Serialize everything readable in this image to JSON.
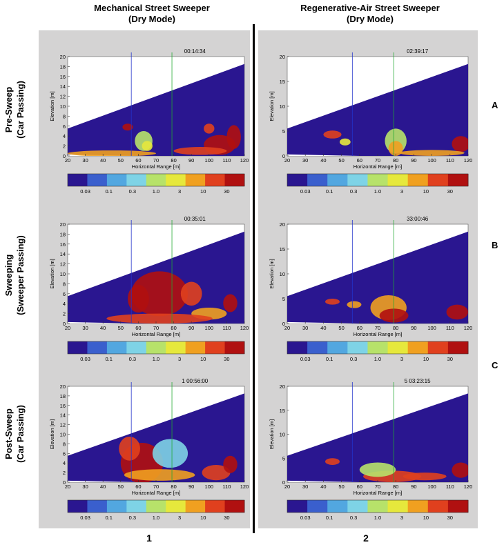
{
  "columns": [
    {
      "line1": "Mechanical Street Sweeper",
      "line2": "(Dry Mode)",
      "number": "1"
    },
    {
      "line1": "Regenerative-Air Street Sweeper",
      "line2": "(Dry Mode)",
      "number": "2"
    }
  ],
  "rows": [
    {
      "line1": "Pre-Sweep",
      "line2": "(Car Passing)",
      "letter": "A"
    },
    {
      "line1": "Sweeping",
      "line2": "(Sweeper Passing)",
      "letter": "B"
    },
    {
      "line1": "Post-Sweep",
      "line2": "(Car Passing)",
      "letter": "C"
    }
  ],
  "colors": {
    "background_navy": "#2a1690",
    "panel_gray": "#d4d3d3",
    "colorbar": [
      "#2a1690",
      "#3a5fcd",
      "#52a7e0",
      "#7ed3e6",
      "#b7e26a",
      "#e6e83c",
      "#f0a020",
      "#e0401e",
      "#b01010"
    ]
  },
  "chart_data": [
    {
      "type": "heatmap",
      "panel": "1A",
      "timestamp": "00:14:34",
      "xlabel": "Horizontal Range [m]",
      "ylabel": "Elevation [m]",
      "xlim": [
        20,
        120
      ],
      "ylim": [
        0,
        20
      ],
      "xticks": [
        "20",
        "30",
        "40",
        "50",
        "60",
        "70",
        "80",
        "90",
        "100",
        "110",
        "120"
      ],
      "yticks": [
        "0",
        "2",
        "4",
        "6",
        "8",
        "10",
        "12",
        "14",
        "16",
        "18",
        "20"
      ],
      "colorbar_ticks": [
        "0.03",
        "0.1",
        "0.3",
        "1.0",
        "3",
        "10",
        "30"
      ]
    },
    {
      "type": "heatmap",
      "panel": "2A",
      "timestamp": "02:39:17",
      "xlabel": "Horizontal Range [m]",
      "ylabel": "Elevation [m]",
      "xlim": [
        20,
        120
      ],
      "ylim": [
        0,
        20
      ],
      "xticks": [
        "20",
        "30",
        "40",
        "50",
        "60",
        "70",
        "80",
        "90",
        "100",
        "110",
        "120"
      ],
      "yticks": [
        "0",
        "5",
        "10",
        "15",
        "20"
      ],
      "colorbar_ticks": [
        "0.03",
        "0.1",
        "0.3",
        "1.0",
        "3",
        "10",
        "30"
      ]
    },
    {
      "type": "heatmap",
      "panel": "1B",
      "timestamp": "00:35:01",
      "xlabel": "Horizontal Range [m]",
      "ylabel": "Elevation [m]",
      "xlim": [
        20,
        120
      ],
      "ylim": [
        0,
        20
      ],
      "xticks": [
        "20",
        "30",
        "40",
        "50",
        "60",
        "70",
        "80",
        "90",
        "100",
        "110",
        "120"
      ],
      "yticks": [
        "0",
        "2",
        "4",
        "6",
        "8",
        "10",
        "12",
        "14",
        "16",
        "18",
        "20"
      ],
      "colorbar_ticks": [
        "0.03",
        "0.1",
        "0.3",
        "1.0",
        "3",
        "10",
        "30"
      ]
    },
    {
      "type": "heatmap",
      "panel": "2B",
      "timestamp": "33:00:46",
      "xlabel": "Horizontal Range [m]",
      "ylabel": "Elevation [m]",
      "xlim": [
        20,
        120
      ],
      "ylim": [
        0,
        20
      ],
      "xticks": [
        "20",
        "30",
        "40",
        "50",
        "60",
        "70",
        "80",
        "90",
        "100",
        "110",
        "120"
      ],
      "yticks": [
        "0",
        "5",
        "10",
        "15",
        "20"
      ],
      "colorbar_ticks": [
        "0.03",
        "0.1",
        "0.3",
        "1.0",
        "3",
        "10",
        "30"
      ]
    },
    {
      "type": "heatmap",
      "panel": "1C",
      "timestamp": "1 00:56:00",
      "xlabel": "Horizontal Range [m]",
      "ylabel": "Elevation [m]",
      "xlim": [
        20,
        120
      ],
      "ylim": [
        0,
        20
      ],
      "xticks": [
        "20",
        "30",
        "40",
        "50",
        "60",
        "70",
        "80",
        "90",
        "100",
        "110",
        "120"
      ],
      "yticks": [
        "0",
        "2",
        "4",
        "6",
        "8",
        "10",
        "12",
        "14",
        "16",
        "18",
        "20"
      ],
      "colorbar_ticks": [
        "0.03",
        "0.1",
        "0.3",
        "1.0",
        "3",
        "10",
        "30"
      ]
    },
    {
      "type": "heatmap",
      "panel": "2C",
      "timestamp": "5 03:23:15",
      "xlabel": "Horizontal Range [m]",
      "ylabel": "Elevation [m]",
      "xlim": [
        20,
        120
      ],
      "ylim": [
        0,
        20
      ],
      "xticks": [
        "20",
        "30",
        "40",
        "50",
        "60",
        "70",
        "80",
        "90",
        "100",
        "110",
        "120"
      ],
      "yticks": [
        "0",
        "5",
        "10",
        "15",
        "20"
      ],
      "colorbar_ticks": [
        "0.03",
        "0.1",
        "0.3",
        "1.0",
        "3",
        "10",
        "30"
      ]
    }
  ]
}
